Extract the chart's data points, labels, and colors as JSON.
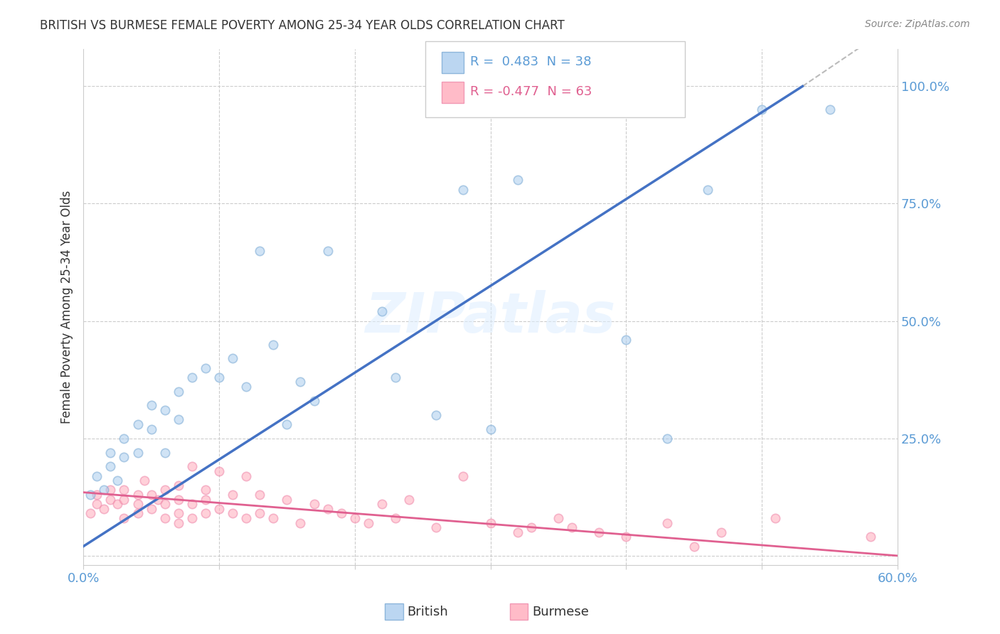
{
  "title": "BRITISH VS BURMESE FEMALE POVERTY AMONG 25-34 YEAR OLDS CORRELATION CHART",
  "source": "Source: ZipAtlas.com",
  "ylabel": "Female Poverty Among 25-34 Year Olds",
  "xlim": [
    0.0,
    0.6
  ],
  "ylim": [
    -0.02,
    1.08
  ],
  "xticklabels_pos": [
    0.0,
    0.6
  ],
  "xticklabels": [
    "0.0%",
    "60.0%"
  ],
  "yticks_right": [
    0.0,
    0.25,
    0.5,
    0.75,
    1.0
  ],
  "ytick_right_labels": [
    "",
    "25.0%",
    "50.0%",
    "75.0%",
    "100.0%"
  ],
  "british_color": "#aaccee",
  "british_edge": "#7aaad4",
  "burmese_color": "#ffaabb",
  "burmese_edge": "#ee88aa",
  "british_R": 0.483,
  "british_N": 38,
  "burmese_R": -0.477,
  "burmese_N": 63,
  "british_scatter_x": [
    0.005,
    0.01,
    0.015,
    0.02,
    0.02,
    0.025,
    0.03,
    0.03,
    0.04,
    0.04,
    0.05,
    0.05,
    0.06,
    0.06,
    0.07,
    0.07,
    0.08,
    0.09,
    0.1,
    0.11,
    0.12,
    0.13,
    0.14,
    0.15,
    0.16,
    0.17,
    0.18,
    0.22,
    0.23,
    0.26,
    0.28,
    0.3,
    0.32,
    0.4,
    0.43,
    0.46,
    0.5,
    0.55
  ],
  "british_scatter_y": [
    0.13,
    0.17,
    0.14,
    0.19,
    0.22,
    0.16,
    0.21,
    0.25,
    0.22,
    0.28,
    0.27,
    0.32,
    0.31,
    0.22,
    0.29,
    0.35,
    0.38,
    0.4,
    0.38,
    0.42,
    0.36,
    0.65,
    0.45,
    0.28,
    0.37,
    0.33,
    0.65,
    0.52,
    0.38,
    0.3,
    0.78,
    0.27,
    0.8,
    0.46,
    0.25,
    0.78,
    0.95,
    0.95
  ],
  "burmese_scatter_x": [
    0.005,
    0.01,
    0.01,
    0.015,
    0.02,
    0.02,
    0.025,
    0.03,
    0.03,
    0.03,
    0.04,
    0.04,
    0.04,
    0.045,
    0.05,
    0.05,
    0.055,
    0.06,
    0.06,
    0.06,
    0.07,
    0.07,
    0.07,
    0.07,
    0.08,
    0.08,
    0.08,
    0.09,
    0.09,
    0.09,
    0.1,
    0.1,
    0.11,
    0.11,
    0.12,
    0.12,
    0.13,
    0.13,
    0.14,
    0.15,
    0.16,
    0.17,
    0.18,
    0.19,
    0.2,
    0.21,
    0.22,
    0.23,
    0.24,
    0.26,
    0.28,
    0.3,
    0.32,
    0.33,
    0.35,
    0.36,
    0.38,
    0.4,
    0.43,
    0.45,
    0.47,
    0.51,
    0.58
  ],
  "burmese_scatter_y": [
    0.09,
    0.11,
    0.13,
    0.1,
    0.12,
    0.14,
    0.11,
    0.08,
    0.12,
    0.14,
    0.09,
    0.11,
    0.13,
    0.16,
    0.1,
    0.13,
    0.12,
    0.08,
    0.11,
    0.14,
    0.07,
    0.09,
    0.12,
    0.15,
    0.08,
    0.11,
    0.19,
    0.09,
    0.12,
    0.14,
    0.1,
    0.18,
    0.09,
    0.13,
    0.08,
    0.17,
    0.09,
    0.13,
    0.08,
    0.12,
    0.07,
    0.11,
    0.1,
    0.09,
    0.08,
    0.07,
    0.11,
    0.08,
    0.12,
    0.06,
    0.17,
    0.07,
    0.05,
    0.06,
    0.08,
    0.06,
    0.05,
    0.04,
    0.07,
    0.02,
    0.05,
    0.08,
    0.04
  ],
  "british_line_color": "#4472c4",
  "burmese_line_color": "#e06090",
  "dashed_line_color": "#bbbbbb",
  "bg_color": "#ffffff",
  "grid_color": "#cccccc",
  "title_color": "#333333",
  "axis_label_color": "#333333",
  "tick_color_blue": "#5b9bd5",
  "legend_blue_text": "#5b9bd5",
  "legend_pink_text": "#e06090",
  "marker_size": 80,
  "marker_alpha": 0.55
}
